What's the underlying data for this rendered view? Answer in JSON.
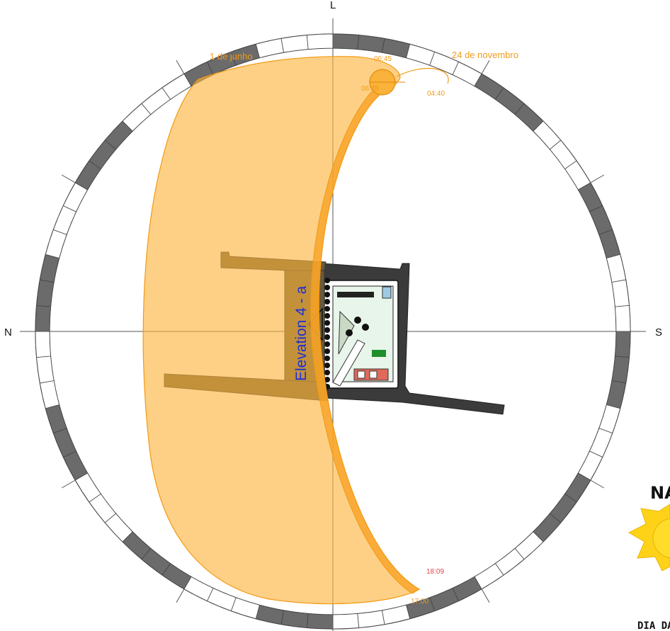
{
  "compass": {
    "north": "N",
    "south": "S",
    "east": "L"
  },
  "sun_path": {
    "date_start": "1 de junho",
    "date_end": "24 de novembro",
    "times": {
      "morning_top": "06:45",
      "morning_sun": "06:45",
      "morning_right": "04:40",
      "evening_red": "18:09",
      "evening_bottom": "17:00"
    }
  },
  "building": {
    "elevation_label": "Elevation 4 - a"
  },
  "corner_badge": {
    "title": "NA",
    "sub": "DIA DAS"
  },
  "colors": {
    "sun_fill": "#fcb33b",
    "sun_stroke": "#f39a12",
    "ring_dark": "#6b6b6b",
    "building_dark": "#3a3a3a",
    "label_blue": "#1a2fd6"
  }
}
